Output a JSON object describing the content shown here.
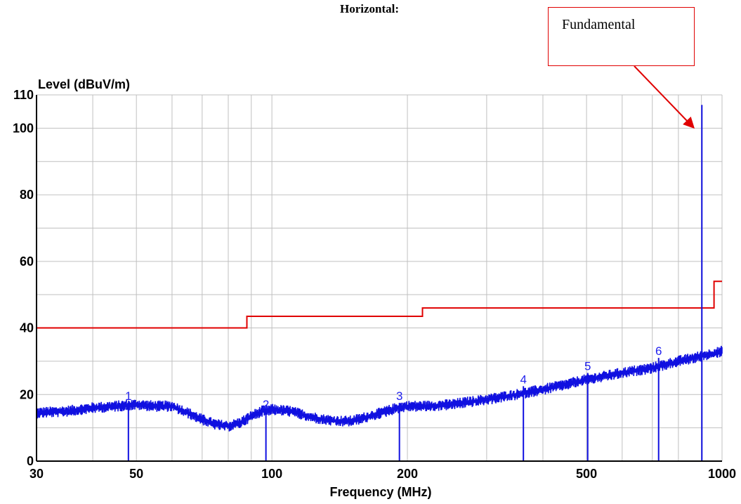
{
  "page": {
    "heading": "Horizontal:",
    "callout": "Fundamental"
  },
  "chart_data": {
    "type": "line",
    "title": "",
    "ylabel": "Level (dBuV/m)",
    "xlabel": "Frequency (MHz)",
    "x_scale": "log",
    "xlim": [
      30,
      1000
    ],
    "ylim": [
      0,
      110
    ],
    "grid": true,
    "x_ticks": [
      30,
      50,
      100,
      200,
      500,
      1000
    ],
    "x_tick_labels": [
      "30",
      "50",
      "100",
      "200",
      "500",
      "1000"
    ],
    "y_ticks": [
      0,
      20,
      40,
      60,
      80,
      100,
      110
    ],
    "y_tick_labels": [
      "0",
      "20",
      "40",
      "60",
      "80",
      "100",
      "110"
    ],
    "series": [
      {
        "role": "limit",
        "color": "#e00000",
        "points": [
          [
            30,
            40
          ],
          [
            88,
            40
          ],
          [
            88,
            43.5
          ],
          [
            216,
            43.5
          ],
          [
            216,
            46
          ],
          [
            960,
            46
          ],
          [
            960,
            54
          ],
          [
            1000,
            54
          ]
        ]
      },
      {
        "role": "trace",
        "color": "#1010e0",
        "points": [
          [
            30,
            14.5
          ],
          [
            35,
            15
          ],
          [
            40,
            16
          ],
          [
            45,
            16.5
          ],
          [
            50,
            17
          ],
          [
            55,
            16.5
          ],
          [
            60,
            16.5
          ],
          [
            65,
            14.5
          ],
          [
            70,
            12.5
          ],
          [
            75,
            11
          ],
          [
            80,
            10.5
          ],
          [
            85,
            11.5
          ],
          [
            90,
            13.5
          ],
          [
            95,
            15
          ],
          [
            100,
            15.5
          ],
          [
            110,
            15
          ],
          [
            120,
            13.5
          ],
          [
            130,
            12.5
          ],
          [
            140,
            12
          ],
          [
            150,
            12
          ],
          [
            160,
            13
          ],
          [
            170,
            14
          ],
          [
            180,
            15
          ],
          [
            190,
            16
          ],
          [
            200,
            16.5
          ],
          [
            220,
            16.5
          ],
          [
            250,
            17
          ],
          [
            300,
            18.5
          ],
          [
            350,
            20
          ],
          [
            400,
            21.5
          ],
          [
            450,
            23
          ],
          [
            500,
            24.5
          ],
          [
            550,
            25.5
          ],
          [
            600,
            26.5
          ],
          [
            700,
            28
          ],
          [
            800,
            30
          ],
          [
            900,
            31.5
          ],
          [
            1000,
            33
          ]
        ]
      }
    ],
    "markers": [
      {
        "label": "1",
        "x": 48,
        "y": 17.5
      },
      {
        "label": "2",
        "x": 97,
        "y": 15
      },
      {
        "label": "3",
        "x": 192,
        "y": 17.5
      },
      {
        "label": "4",
        "x": 362,
        "y": 22.5
      },
      {
        "label": "5",
        "x": 503,
        "y": 26.5
      },
      {
        "label": "6",
        "x": 723,
        "y": 31
      },
      {
        "label": "",
        "x": 902,
        "y": 107
      }
    ],
    "colors": {
      "limit": "#e00000",
      "trace": "#1010e0",
      "marker": "#2222ee",
      "grid": "#c0c0c0",
      "callout": "#e00000"
    }
  }
}
